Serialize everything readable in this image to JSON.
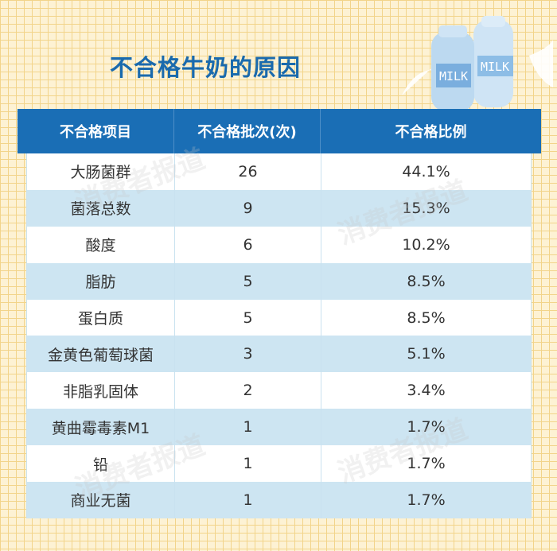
{
  "title": "不合格牛奶的原因",
  "watermark": "消费者报道",
  "illustration": {
    "bottle_label": "MILK"
  },
  "table": {
    "headers": [
      "不合格项目",
      "不合格批次(次)",
      "不合格比例"
    ],
    "rows": [
      [
        "大肠菌群",
        "26",
        "44.1%"
      ],
      [
        "菌落总数",
        "9",
        "15.3%"
      ],
      [
        "酸度",
        "6",
        "10.2%"
      ],
      [
        "脂肪",
        "5",
        "8.5%"
      ],
      [
        "蛋白质",
        "5",
        "8.5%"
      ],
      [
        "金黄色葡萄球菌",
        "3",
        "5.1%"
      ],
      [
        "非脂乳固体",
        "2",
        "3.4%"
      ],
      [
        "黄曲霉毒素M1",
        "1",
        "1.7%"
      ],
      [
        "铅",
        "1",
        "1.7%"
      ],
      [
        "商业无菌",
        "1",
        "1.7%"
      ]
    ]
  },
  "colors": {
    "header": "#1a6eb5",
    "title": "#1a6aad",
    "stripe": "#cde5f2",
    "background": "#fdf2d4"
  }
}
